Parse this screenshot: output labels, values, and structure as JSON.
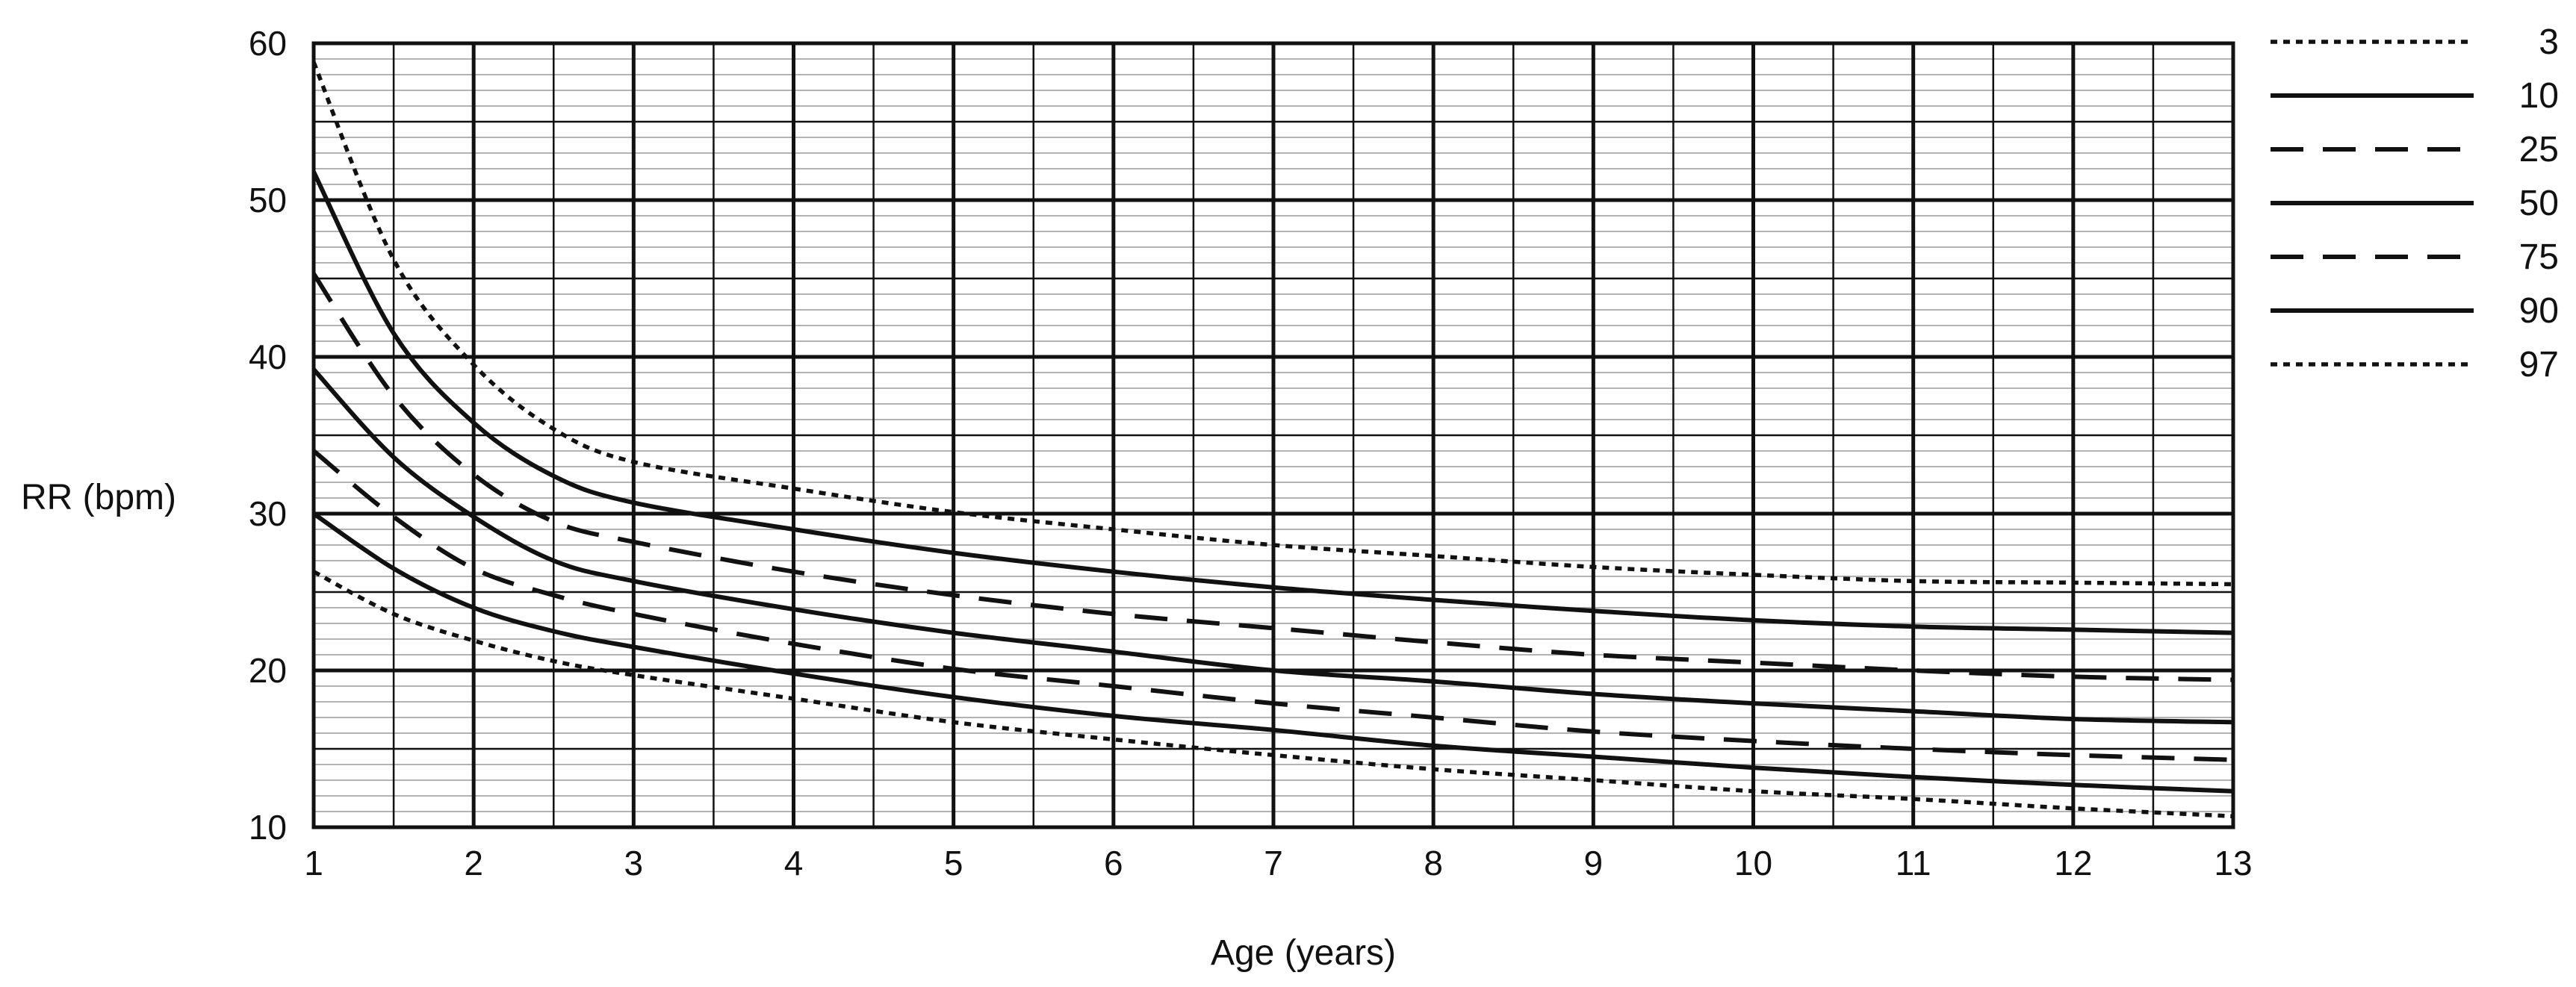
{
  "chart_data": {
    "type": "line",
    "title": "",
    "xlabel": "Age (years)",
    "ylabel": "RR (bpm)",
    "xlim": [
      1,
      13
    ],
    "ylim": [
      10,
      60
    ],
    "xticks": [
      1,
      2,
      3,
      4,
      5,
      6,
      7,
      8,
      9,
      10,
      11,
      12,
      13
    ],
    "yticks": [
      10,
      20,
      30,
      40,
      50,
      60
    ],
    "grid": true,
    "legend_position": "right",
    "x": [
      1,
      1.5,
      2,
      2.5,
      3,
      4,
      5,
      6,
      7,
      8,
      9,
      10,
      11,
      12,
      13
    ],
    "series": [
      {
        "name": "3",
        "style": "dotted",
        "values": [
          26.3,
          23.6,
          21.9,
          20.6,
          19.7,
          18.2,
          16.7,
          15.6,
          14.6,
          13.7,
          13.0,
          12.3,
          11.8,
          11.2,
          10.7
        ]
      },
      {
        "name": "10",
        "style": "solid",
        "values": [
          30.0,
          26.5,
          24.0,
          22.5,
          21.5,
          19.8,
          18.3,
          17.1,
          16.2,
          15.2,
          14.5,
          13.8,
          13.2,
          12.7,
          12.3
        ]
      },
      {
        "name": "25",
        "style": "dashed",
        "values": [
          34.0,
          29.8,
          26.5,
          24.8,
          23.6,
          21.7,
          20.1,
          19.0,
          17.9,
          17.0,
          16.1,
          15.5,
          15.0,
          14.6,
          14.3
        ]
      },
      {
        "name": "50",
        "style": "solid",
        "values": [
          39.2,
          33.6,
          29.8,
          27.0,
          25.7,
          23.9,
          22.4,
          21.2,
          20.0,
          19.3,
          18.5,
          17.9,
          17.4,
          16.9,
          16.7
        ]
      },
      {
        "name": "75",
        "style": "dashed",
        "values": [
          45.3,
          37.5,
          32.5,
          29.5,
          28.2,
          26.3,
          24.8,
          23.6,
          22.7,
          21.8,
          21.0,
          20.5,
          20.0,
          19.6,
          19.4
        ]
      },
      {
        "name": "90",
        "style": "solid",
        "values": [
          51.8,
          41.5,
          35.8,
          32.4,
          30.7,
          29.0,
          27.5,
          26.3,
          25.3,
          24.5,
          23.8,
          23.2,
          22.8,
          22.6,
          22.4
        ]
      },
      {
        "name": "97",
        "style": "dotted",
        "values": [
          58.8,
          46.2,
          39.5,
          35.4,
          33.3,
          31.6,
          30.1,
          29.0,
          28.0,
          27.3,
          26.6,
          26.1,
          25.7,
          25.6,
          25.5
        ]
      }
    ]
  }
}
